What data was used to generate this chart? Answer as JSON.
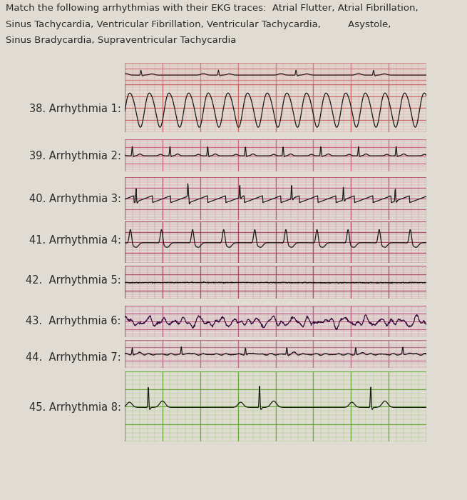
{
  "title_line1": "Match the following arrhythmias with their EKG traces:  Atrial Flutter, Atrial Fibrillation,",
  "title_line2": "Sinus Tachycardia, Ventricular Fibrillation, Ventricular Tachycardia,         Asystole,",
  "title_line3": "Sinus Bradycardia, Supraventricular Tachycardia",
  "labels": [
    "38. Arrhythmia 1:",
    "39. Arrhythmia 2:",
    "40. Arrhythmia 3:",
    "41. Arrhythmia 4:",
    "42.  Arrhythmia 5:",
    "43.  Arrhythmia 6:",
    "44.  Arrhythmia 7:",
    "45. Arrhythmia 8:"
  ],
  "bg_colors": [
    "#f2c8c8",
    "#f2c8d0",
    "#f0b8c8",
    "#eea0b8",
    "#eeaab8",
    "#f2b8d0",
    "#f0c8d0",
    "#d0eeaa"
  ],
  "grid_minor_colors": [
    "#e09090",
    "#e090a8",
    "#d880a0",
    "#cc7090",
    "#cc7890",
    "#d888a8",
    "#d898b0",
    "#90cc60"
  ],
  "grid_major_colors": [
    "#cc6060",
    "#cc6080",
    "#bb5078",
    "#aa4068",
    "#aa4868",
    "#bb5880",
    "#bb6888",
    "#60aa30"
  ],
  "line_colors": [
    "#1a1a1a",
    "#1a1a1a",
    "#1a1a1a",
    "#1a1a1a",
    "#1a1a1a",
    "#3a1040",
    "#1a1a1a",
    "#1a2010"
  ],
  "background": "#e0dcd4",
  "text_color": "#2a2a2a",
  "title_fontsize": 9.5,
  "label_fontsize": 10.5,
  "strip1_top_bg": "#f8e8e8",
  "strip1_top_grid": "#e0a0a0",
  "strip5_bg": "#eeaab8"
}
